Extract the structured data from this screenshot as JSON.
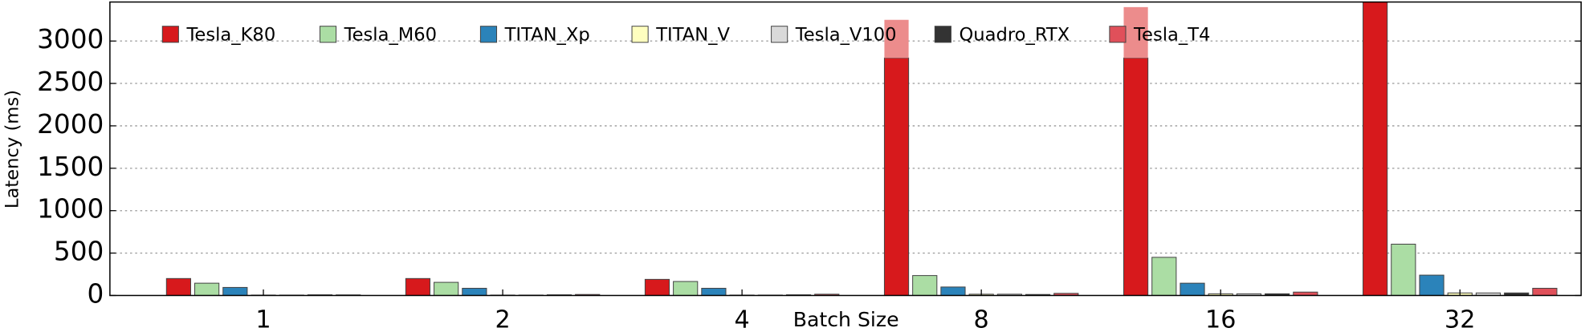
{
  "chart_data": {
    "type": "bar",
    "xlabel": "Batch Size",
    "ylabel": "Latency (ms)",
    "categories": [
      "1",
      "2",
      "4",
      "8",
      "16",
      "32"
    ],
    "series": [
      {
        "name": "Tesla_K80",
        "color": "#d7191c",
        "values": [
          200,
          200,
          190,
          2800,
          2800,
          3600
        ],
        "upper_values": [
          null,
          null,
          null,
          450,
          600,
          null
        ],
        "upper_color": "#ec8c8c"
      },
      {
        "name": "Tesla_M60",
        "color": "#abdda4",
        "values": [
          145,
          155,
          165,
          235,
          450,
          605
        ]
      },
      {
        "name": "TITAN_Xp",
        "color": "#2b83ba",
        "values": [
          95,
          85,
          85,
          100,
          145,
          240
        ]
      },
      {
        "name": "TITAN_V",
        "color": "#ffffbf",
        "values": [
          5,
          5,
          5,
          15,
          20,
          30
        ]
      },
      {
        "name": "Tesla_V100",
        "color": "#d9d9d9",
        "values": [
          5,
          5,
          5,
          15,
          20,
          30
        ]
      },
      {
        "name": "Quadro_RTX",
        "color": "#333333",
        "values": [
          8,
          8,
          8,
          12,
          20,
          30
        ]
      },
      {
        "name": "Tesla_T4",
        "color": "#e0505a",
        "values": [
          7,
          12,
          15,
          25,
          40,
          85
        ]
      }
    ],
    "ylim": [
      0,
      3460
    ],
    "yticks": [
      0,
      500,
      1000,
      1500,
      2000,
      2500,
      3000
    ],
    "grid": true,
    "legend": "top"
  }
}
